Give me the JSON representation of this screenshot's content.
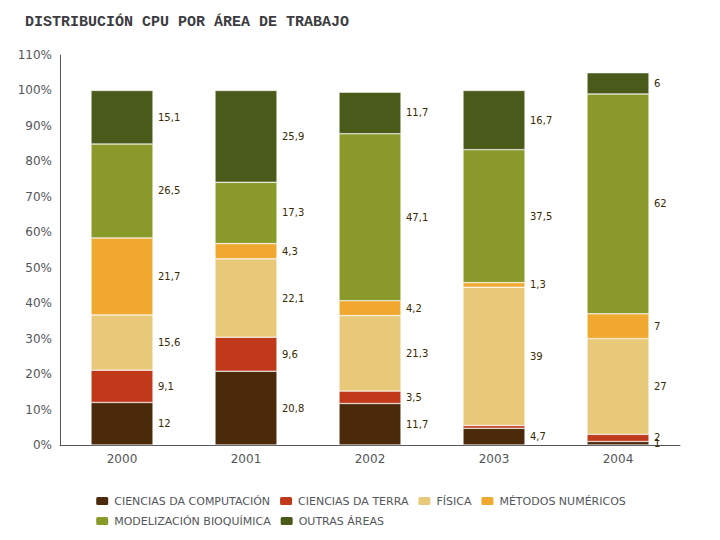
{
  "chart_data": {
    "type": "bar",
    "title": "DISTRIBUCIÓN CPU POR ÁREA DE TRABAJO",
    "categories": [
      "2000",
      "2001",
      "2002",
      "2003",
      "2004"
    ],
    "stacked": true,
    "data_labels": true,
    "grid": false,
    "legend": "bottom",
    "ylim": [
      0,
      110
    ],
    "yticks": [
      {
        "value": 0,
        "label": "0%"
      },
      {
        "value": 10,
        "label": "10%"
      },
      {
        "value": 20,
        "label": "20%"
      },
      {
        "value": 30,
        "label": "30%"
      },
      {
        "value": 40,
        "label": "40%"
      },
      {
        "value": 50,
        "label": "50%"
      },
      {
        "value": 60,
        "label": "60%"
      },
      {
        "value": 70,
        "label": "70%"
      },
      {
        "value": 80,
        "label": "80%"
      },
      {
        "value": 90,
        "label": "90%"
      },
      {
        "value": 100,
        "label": "100%"
      },
      {
        "value": 110,
        "label": "110%"
      }
    ],
    "series": [
      {
        "name": "CIENCIAS DA COMPUTACIÓN",
        "color": "#4a2a0a",
        "values": [
          12.0,
          20.8,
          11.7,
          4.7,
          1.0
        ],
        "value_labels": [
          "12",
          "20,8",
          "11,7",
          "4,7",
          "1"
        ]
      },
      {
        "name": "CIENCIAS DA TERRA",
        "color": "#c0391b",
        "values": [
          9.1,
          9.6,
          3.5,
          0.8,
          2.0
        ],
        "value_labels": [
          "9,1",
          "9,6",
          "3,5",
          null,
          "2"
        ]
      },
      {
        "name": "FÍSICA",
        "color": "#e8c97a",
        "values": [
          15.6,
          22.1,
          21.3,
          39.0,
          27.0
        ],
        "value_labels": [
          "15,6",
          "22,1",
          "21,3",
          "39",
          "27"
        ]
      },
      {
        "name": "MÉTODOS NUMÉRICOS",
        "color": "#f0a830",
        "values": [
          21.7,
          4.3,
          4.2,
          1.3,
          7.0
        ],
        "value_labels": [
          "21,7",
          "4,3",
          "4,2",
          "1,3",
          "7"
        ]
      },
      {
        "name": "MODELIZACIÓN BIOQUÍMICA",
        "color": "#8a9a2a",
        "values": [
          26.5,
          17.3,
          47.1,
          37.5,
          62.0
        ],
        "value_labels": [
          "26,5",
          "17,3",
          "47,1",
          "37,5",
          "62"
        ]
      },
      {
        "name": "OUTRAS ÁREAS",
        "color": "#4a5a1a",
        "values": [
          15.1,
          25.9,
          11.7,
          16.7,
          6.0
        ],
        "value_labels": [
          "15,1",
          "25,9",
          "11,7",
          "16,7",
          "6"
        ]
      }
    ]
  }
}
